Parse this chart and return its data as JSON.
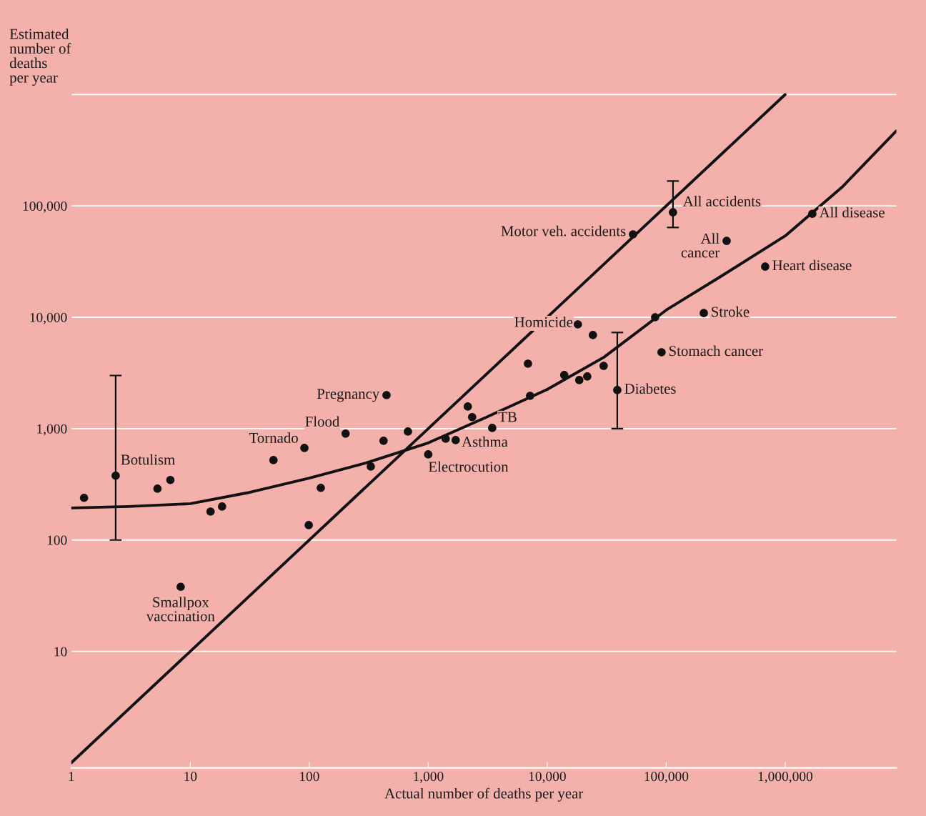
{
  "chart_data": {
    "type": "scatter",
    "xlabel": "Actual number of deaths per year",
    "ylabel": "Estimated\nnumber of\ndeaths\nper year",
    "log": "xy",
    "grid": "y",
    "marker": "circle",
    "xlim": [
      1,
      8600000
    ],
    "ylim": [
      0.9,
      1200000
    ],
    "xticks": [
      1,
      10,
      100,
      {
        "value": 1000,
        "label": "1,000"
      },
      {
        "value": 10000,
        "label": "10,000"
      },
      {
        "value": 100000,
        "label": "100,000"
      },
      {
        "value": 1000000,
        "label": "1,000,000"
      }
    ],
    "yticks": [
      10,
      100,
      {
        "value": 1000,
        "label": "1,000"
      },
      {
        "value": 10000,
        "label": "10,000"
      },
      {
        "value": 100000,
        "label": "100,000"
      },
      {
        "value": 1000000,
        "label": null
      }
    ],
    "series": [
      {
        "color": "#111111",
        "x": [
          1.28,
          2.36,
          5.3,
          6.8,
          14.8,
          18.5,
          8.3,
          50,
          91,
          99,
          125,
          202,
          329,
          446,
          421,
          675,
          1000,
          1400,
          1700,
          2150,
          2340,
          3450,
          6890,
          7180,
          13900,
          18600,
          21700,
          18100,
          24200,
          29800,
          38800,
          80700,
          91400,
          207000,
          52600,
          114000,
          322000,
          679000,
          1690000
        ],
        "values": [
          239,
          378,
          289,
          346,
          180,
          200,
          38,
          522,
          671,
          136,
          294,
          902,
          457,
          2000,
          778,
          942,
          587,
          813,
          789,
          1580,
          1270,
          1014,
          3830,
          1970,
          3030,
          2730,
          2940,
          8630,
          6920,
          3660,
          2220,
          10000,
          4850,
          10900,
          55500,
          87500,
          48500,
          28500,
          84900
        ],
        "errors": [
          null,
          [
            100,
            3000
          ],
          null,
          null,
          null,
          null,
          null,
          null,
          null,
          null,
          null,
          null,
          null,
          null,
          null,
          null,
          null,
          null,
          null,
          null,
          null,
          null,
          null,
          null,
          null,
          null,
          null,
          null,
          null,
          null,
          [
            1000,
            7300
          ],
          null,
          null,
          null,
          null,
          [
            64000,
            167000
          ],
          null,
          null,
          null
        ]
      },
      {
        "type": "line",
        "color": "#111111",
        "line_style": "solid",
        "marker": "none",
        "x": [
          1,
          1000000
        ],
        "values": [
          1,
          1000000
        ]
      },
      {
        "type": "line",
        "color": "#111111",
        "line_style": "solid",
        "marker": "none",
        "x": [
          1,
          3,
          10,
          30,
          100,
          300,
          1000,
          3000,
          10000,
          30000,
          100000,
          300000,
          1000000,
          3000000,
          8600000
        ],
        "values": [
          194,
          200,
          212,
          265,
          360,
          492,
          745,
          1250,
          2250,
          4380,
          11600,
          23900,
          53700,
          147000,
          471000
        ]
      }
    ],
    "annotations": [
      {
        "text": "Botulism",
        "x": 2.36,
        "y": 378
      },
      {
        "text": "Smallpox\nvaccination",
        "x": 8.3,
        "y": 38
      },
      {
        "text": "Tornado",
        "x": 91,
        "y": 671
      },
      {
        "text": "Flood",
        "x": 202,
        "y": 902
      },
      {
        "text": "Pregnancy",
        "x": 446,
        "y": 2000
      },
      {
        "text": "Electrocution",
        "x": 1000,
        "y": 587
      },
      {
        "text": "Asthma",
        "x": 1700,
        "y": 789
      },
      {
        "text": "TB",
        "x": 3450,
        "y": 1014
      },
      {
        "text": "Homicide",
        "x": 18100,
        "y": 8630
      },
      {
        "text": "Diabetes",
        "x": 38800,
        "y": 2220
      },
      {
        "text": "Stomach cancer",
        "x": 91400,
        "y": 4850
      },
      {
        "text": "Stroke",
        "x": 207000,
        "y": 10900
      },
      {
        "text": "Motor veh. accidents",
        "x": 52600,
        "y": 55500
      },
      {
        "text": "All accidents",
        "x": 114000,
        "y": 87500
      },
      {
        "text": "All\ncancer",
        "x": 322000,
        "y": 48500
      },
      {
        "text": "Heart disease",
        "x": 679000,
        "y": 28500
      },
      {
        "text": "All disease",
        "x": 1690000,
        "y": 84900
      }
    ]
  }
}
